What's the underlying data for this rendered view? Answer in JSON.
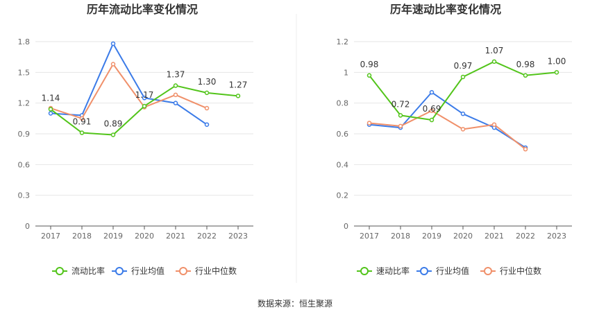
{
  "source_label": "数据来源：恒生聚源",
  "colors": {
    "main": "#52c41a",
    "avg": "#3b7be8",
    "median": "#f0906a",
    "grid": "#e6e6e6",
    "axis": "#555555"
  },
  "chart_data": [
    {
      "type": "line",
      "title": "历年流动比率变化情况",
      "categories": [
        "2017",
        "2018",
        "2019",
        "2020",
        "2021",
        "2022",
        "2023"
      ],
      "ylim": [
        0,
        1.8
      ],
      "yticks": [
        "0",
        "0.3",
        "0.6",
        "0.9",
        "1.2",
        "1.5",
        "1.8"
      ],
      "grid": true,
      "legend_position": "bottom",
      "series": [
        {
          "name": "流动比率",
          "values": [
            1.14,
            0.91,
            0.89,
            1.17,
            1.37,
            1.3,
            1.27
          ],
          "labels": [
            "1.14",
            "0.91",
            "0.89",
            "1.17",
            "1.37",
            "1.30",
            "1.27"
          ]
        },
        {
          "name": "行业均值",
          "values": [
            1.1,
            1.08,
            1.78,
            1.25,
            1.2,
            0.99,
            null
          ]
        },
        {
          "name": "行业中位数",
          "values": [
            1.15,
            1.05,
            1.58,
            1.16,
            1.28,
            1.15,
            null
          ]
        }
      ]
    },
    {
      "type": "line",
      "title": "历年速动比率变化情况",
      "categories": [
        "2017",
        "2018",
        "2019",
        "2020",
        "2021",
        "2022",
        "2023"
      ],
      "ylim": [
        0,
        1.2
      ],
      "yticks": [
        "0",
        "0.2",
        "0.4",
        "0.6",
        "0.8",
        "1",
        "1.2"
      ],
      "grid": true,
      "legend_position": "bottom",
      "series": [
        {
          "name": "速动比率",
          "values": [
            0.98,
            0.72,
            0.69,
            0.97,
            1.07,
            0.98,
            1.0
          ],
          "labels": [
            "0.98",
            "0.72",
            "0.69",
            "0.97",
            "1.07",
            "0.98",
            "1.00"
          ]
        },
        {
          "name": "行业均值",
          "values": [
            0.66,
            0.64,
            0.87,
            0.73,
            0.64,
            0.51,
            null
          ]
        },
        {
          "name": "行业中位数",
          "values": [
            0.67,
            0.65,
            0.75,
            0.63,
            0.66,
            0.5,
            null
          ]
        }
      ]
    }
  ]
}
